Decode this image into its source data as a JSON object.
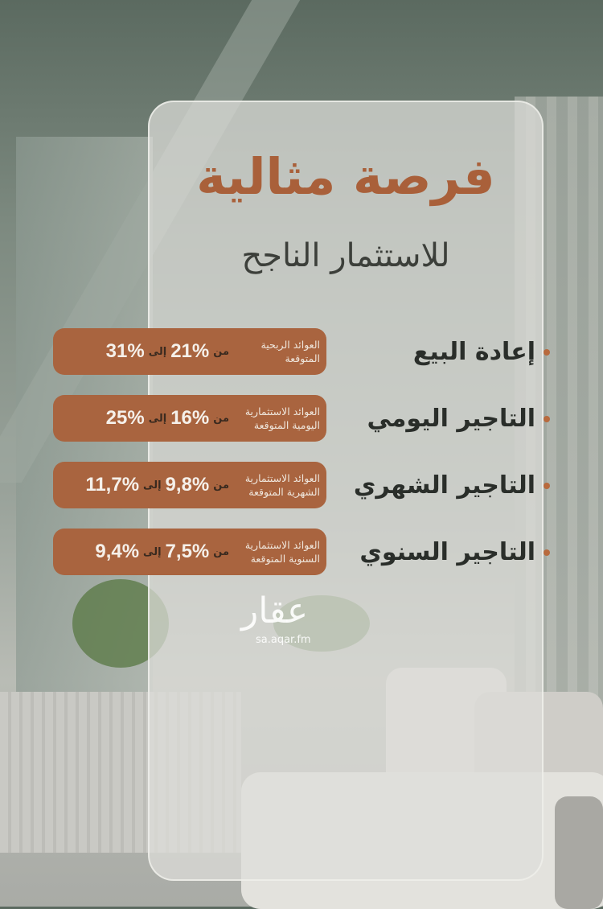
{
  "title": "فرصة مثالية",
  "subtitle": "للاستثمار الناجح",
  "watermark": {
    "logo_text": "عقار",
    "url": "sa.aqar.fm"
  },
  "colors": {
    "accent": "#a9643f",
    "title": "#a9603a",
    "text": "#2a2e2a"
  },
  "connector_from": "من",
  "connector_to": "إلى",
  "items": [
    {
      "label": "إعادة البيع",
      "badge_label": "العوائد الربحية المتوقعة",
      "from": "21%",
      "to": "31%"
    },
    {
      "label": "التاجير اليومي",
      "badge_label": "العوائد الاستثمارية اليومية المتوقعة",
      "from": "16%",
      "to": "25%"
    },
    {
      "label": "التاجير الشهري",
      "badge_label": "العوائد الاستثمارية الشهرية المتوقعة",
      "from": "9,8%",
      "to": "11,7%"
    },
    {
      "label": "التاجير السنوي",
      "badge_label": "العوائد الاستثمارية السنوية المتوقعة",
      "from": "7,5%",
      "to": "9,4%"
    }
  ]
}
